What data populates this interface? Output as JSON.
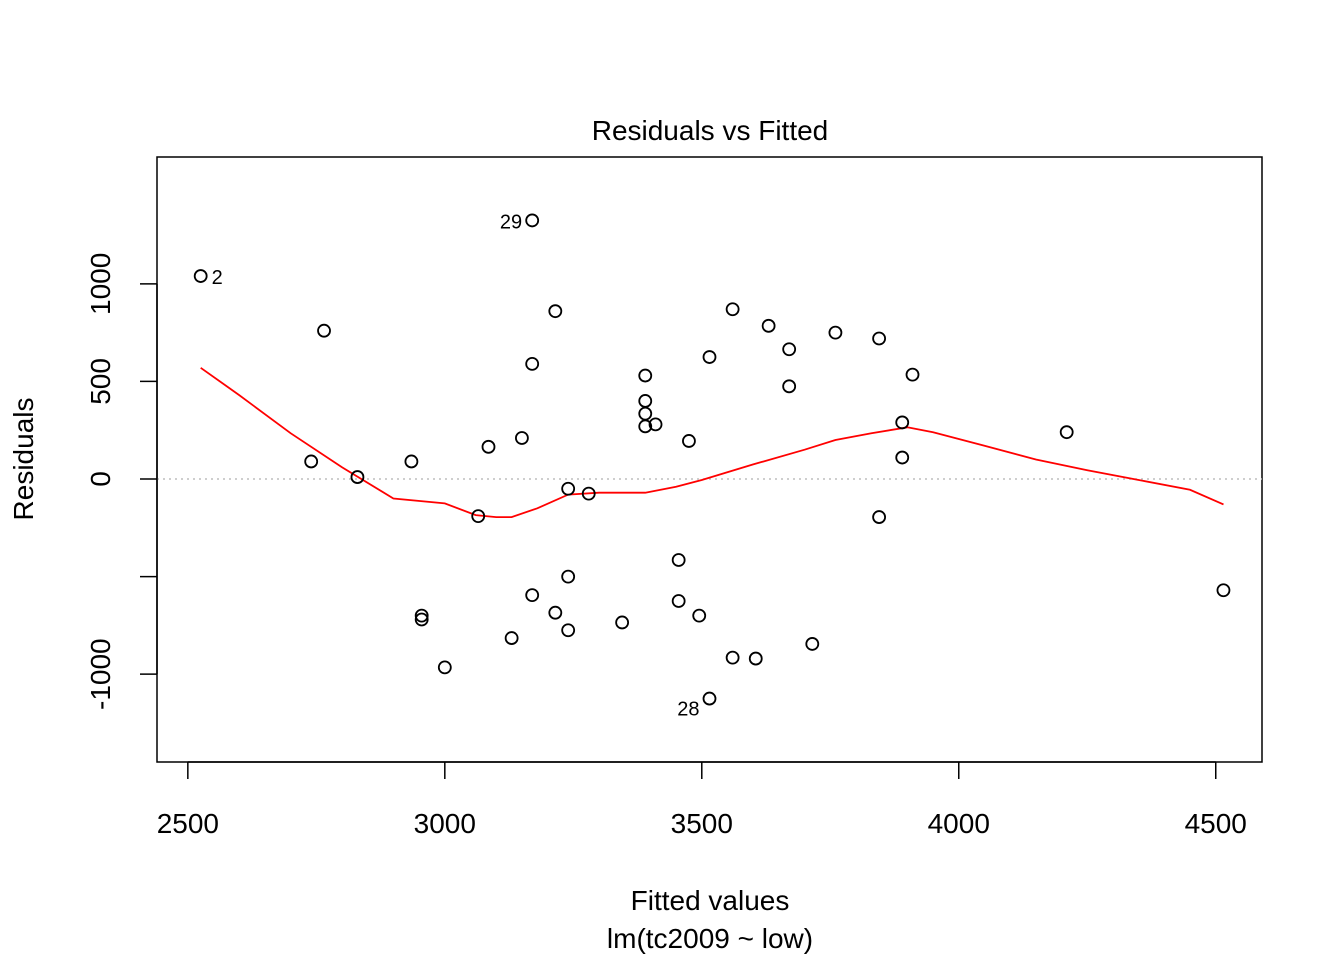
{
  "chart_data": {
    "type": "scatter",
    "title": "Residuals vs Fitted",
    "xlabel": "Fitted values",
    "sublabel": "lm(tc2009 ~ low)",
    "ylabel": "Residuals",
    "xlim": [
      2440,
      4590
    ],
    "ylim": [
      -1450,
      1650
    ],
    "x_ticks": [
      2500,
      3000,
      3500,
      4000,
      4500
    ],
    "y_ticks": [
      -1000,
      -500,
      0,
      500,
      1000
    ],
    "y_tick_labels": [
      "-1000",
      "",
      "0",
      "500",
      "1000"
    ],
    "grid": false,
    "zero_line": {
      "y": 0,
      "color": "#bebebe",
      "style": "dotted"
    },
    "points": [
      {
        "x": 2525,
        "y": 1040,
        "label": "2"
      },
      {
        "x": 2740,
        "y": 90
      },
      {
        "x": 2765,
        "y": 760
      },
      {
        "x": 2830,
        "y": 10
      },
      {
        "x": 2935,
        "y": 90
      },
      {
        "x": 2955,
        "y": -700
      },
      {
        "x": 2955,
        "y": -720
      },
      {
        "x": 3000,
        "y": -965
      },
      {
        "x": 3065,
        "y": -190
      },
      {
        "x": 3085,
        "y": 165
      },
      {
        "x": 3130,
        "y": -815
      },
      {
        "x": 3150,
        "y": 210
      },
      {
        "x": 3170,
        "y": 1325,
        "label": "29"
      },
      {
        "x": 3170,
        "y": 590
      },
      {
        "x": 3170,
        "y": -595
      },
      {
        "x": 3215,
        "y": 860
      },
      {
        "x": 3215,
        "y": -685
      },
      {
        "x": 3240,
        "y": -50
      },
      {
        "x": 3240,
        "y": -500
      },
      {
        "x": 3240,
        "y": -775
      },
      {
        "x": 3280,
        "y": -75
      },
      {
        "x": 3345,
        "y": -735
      },
      {
        "x": 3390,
        "y": 530
      },
      {
        "x": 3390,
        "y": 400
      },
      {
        "x": 3390,
        "y": 335
      },
      {
        "x": 3390,
        "y": 270
      },
      {
        "x": 3410,
        "y": 280
      },
      {
        "x": 3455,
        "y": -415
      },
      {
        "x": 3455,
        "y": -625
      },
      {
        "x": 3475,
        "y": 195
      },
      {
        "x": 3495,
        "y": -700
      },
      {
        "x": 3515,
        "y": 625
      },
      {
        "x": 3515,
        "y": -1125,
        "label": "28"
      },
      {
        "x": 3560,
        "y": 870
      },
      {
        "x": 3560,
        "y": -915
      },
      {
        "x": 3605,
        "y": -920
      },
      {
        "x": 3630,
        "y": 785
      },
      {
        "x": 3670,
        "y": 665
      },
      {
        "x": 3670,
        "y": 475
      },
      {
        "x": 3715,
        "y": -845
      },
      {
        "x": 3760,
        "y": 750
      },
      {
        "x": 3845,
        "y": 720
      },
      {
        "x": 3845,
        "y": -195
      },
      {
        "x": 3890,
        "y": 290
      },
      {
        "x": 3890,
        "y": 110
      },
      {
        "x": 3910,
        "y": 535
      },
      {
        "x": 4210,
        "y": 240
      },
      {
        "x": 4515,
        "y": -570
      }
    ],
    "smooth_line": {
      "color": "#ff0000",
      "x": [
        2525,
        2600,
        2700,
        2800,
        2900,
        3000,
        3060,
        3100,
        3130,
        3180,
        3240,
        3300,
        3390,
        3450,
        3500,
        3600,
        3700,
        3760,
        3830,
        3900,
        3950,
        4050,
        4150,
        4250,
        4350,
        4450,
        4515
      ],
      "y": [
        570,
        430,
        235,
        60,
        -100,
        -125,
        -185,
        -195,
        -195,
        -150,
        -80,
        -70,
        -70,
        -40,
        -5,
        75,
        150,
        200,
        235,
        265,
        240,
        170,
        100,
        45,
        -5,
        -55,
        -130
      ]
    }
  }
}
